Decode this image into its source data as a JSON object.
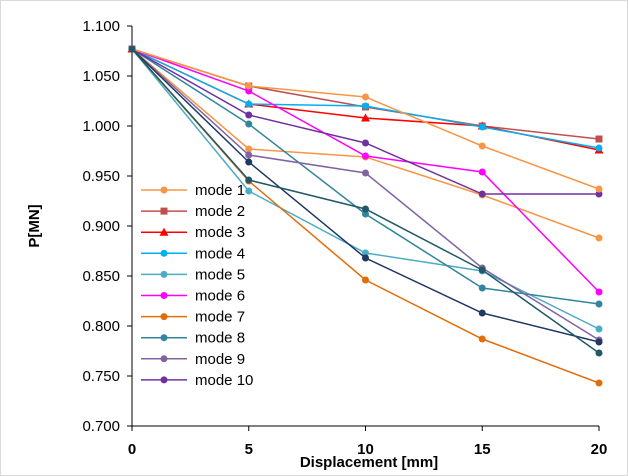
{
  "chart_data": {
    "type": "line",
    "title": "",
    "xlabel": "Displacement [mm]",
    "ylabel": "P[MN]",
    "x": [
      0,
      5,
      10,
      15,
      20
    ],
    "xlim": [
      0,
      20
    ],
    "ylim": [
      0.7,
      1.1
    ],
    "yticks": [
      "0.700",
      "0.750",
      "0.800",
      "0.850",
      "0.900",
      "0.950",
      "1.000",
      "1.050",
      "1.100"
    ],
    "xticks": [
      "0",
      "5",
      "10",
      "15",
      "20"
    ],
    "grid": false,
    "legend": "left-bottom",
    "series": [
      {
        "name": "mode 1",
        "color": "#f79646",
        "marker": "circle",
        "values": [
          1.077,
          0.977,
          0.969,
          0.931,
          0.888
        ]
      },
      {
        "name": "mode 2",
        "color": "#c0504d",
        "marker": "square",
        "values": [
          1.077,
          1.04,
          1.019,
          1.0,
          0.987
        ]
      },
      {
        "name": "mode 3",
        "color": "#ff0000",
        "marker": "triangle",
        "values": [
          1.077,
          1.022,
          1.008,
          1.0,
          0.976
        ]
      },
      {
        "name": "mode 4",
        "color": "#00b0f0",
        "marker": "circle",
        "values": [
          1.077,
          1.022,
          1.02,
          0.999,
          0.978
        ]
      },
      {
        "name": "mode 5",
        "color": "#4bacc6",
        "marker": "circle",
        "values": [
          1.077,
          0.935,
          0.873,
          0.855,
          0.797
        ]
      },
      {
        "name": "mode 6",
        "color": "#ff00ff",
        "marker": "circle",
        "values": [
          1.077,
          1.035,
          0.97,
          0.954,
          0.834
        ]
      },
      {
        "name": "mode 7",
        "color": "#e36c09",
        "marker": "circle",
        "values": [
          1.077,
          0.945,
          0.846,
          0.787,
          0.743
        ]
      },
      {
        "name": "mode 8",
        "color": "#31859c",
        "marker": "circle",
        "values": [
          1.077,
          1.002,
          0.912,
          0.838,
          0.822
        ]
      },
      {
        "name": "mode 9",
        "color": "#8064a2",
        "marker": "circle",
        "values": [
          1.077,
          0.971,
          0.953,
          0.858,
          0.786
        ]
      },
      {
        "name": "mode 10",
        "color": "#7030a0",
        "marker": "circle",
        "values": [
          1.077,
          1.011,
          0.983,
          0.932,
          0.932
        ]
      },
      {
        "name": "",
        "color": "#f79646",
        "marker": "circle",
        "values": [
          1.077,
          1.04,
          1.029,
          0.98,
          0.937
        ]
      },
      {
        "name": "",
        "color": "#1f3864",
        "marker": "circle",
        "values": [
          1.077,
          0.964,
          0.868,
          0.813,
          0.784
        ]
      },
      {
        "name": "",
        "color": "#215967",
        "marker": "circle",
        "values": [
          1.077,
          0.946,
          0.917,
          0.856,
          0.773
        ]
      }
    ]
  }
}
